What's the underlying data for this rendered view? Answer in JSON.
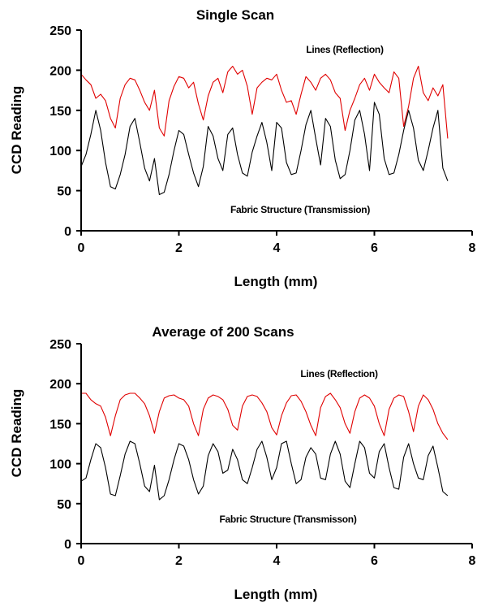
{
  "chart_data": [
    {
      "type": "line",
      "title": "Single Scan",
      "xlabel": "Length (mm)",
      "ylabel": "CCD Reading",
      "xlim": [
        0,
        8
      ],
      "ylim": [
        0,
        250
      ],
      "xticks": [
        0,
        2,
        4,
        6,
        8
      ],
      "yticks": [
        0,
        50,
        100,
        150,
        200,
        250
      ],
      "grid": false,
      "annotations": [
        "Lines (Reflection)",
        "Fabric Structure (Transmission)"
      ],
      "series": [
        {
          "name": "Lines (Reflection)",
          "color": "#e00000",
          "x": [
            0.0,
            0.1,
            0.2,
            0.3,
            0.4,
            0.5,
            0.6,
            0.7,
            0.8,
            0.9,
            1.0,
            1.1,
            1.2,
            1.3,
            1.4,
            1.5,
            1.6,
            1.7,
            1.8,
            1.9,
            2.0,
            2.1,
            2.2,
            2.3,
            2.4,
            2.5,
            2.6,
            2.7,
            2.8,
            2.9,
            3.0,
            3.1,
            3.2,
            3.3,
            3.4,
            3.5,
            3.6,
            3.7,
            3.8,
            3.9,
            4.0,
            4.1,
            4.2,
            4.3,
            4.4,
            4.5,
            4.6,
            4.7,
            4.8,
            4.9,
            5.0,
            5.1,
            5.2,
            5.3,
            5.4,
            5.5,
            5.6,
            5.7,
            5.8,
            5.9,
            6.0,
            6.1,
            6.2,
            6.3,
            6.4,
            6.5,
            6.6,
            6.7,
            6.8,
            6.9,
            7.0,
            7.1,
            7.2,
            7.3,
            7.4,
            7.5
          ],
          "y": [
            195,
            188,
            182,
            165,
            170,
            162,
            140,
            128,
            165,
            182,
            190,
            188,
            175,
            160,
            150,
            175,
            128,
            118,
            162,
            180,
            192,
            190,
            178,
            185,
            158,
            138,
            168,
            185,
            190,
            172,
            198,
            205,
            195,
            200,
            180,
            145,
            178,
            185,
            190,
            188,
            195,
            175,
            160,
            162,
            145,
            170,
            192,
            185,
            175,
            190,
            195,
            188,
            172,
            165,
            125,
            150,
            165,
            182,
            190,
            175,
            195,
            185,
            178,
            172,
            198,
            190,
            130,
            155,
            190,
            205,
            172,
            162,
            178,
            168,
            182,
            115
          ]
        },
        {
          "name": "Fabric Structure (Transmission)",
          "color": "#000000",
          "x": [
            0.0,
            0.1,
            0.2,
            0.3,
            0.4,
            0.5,
            0.6,
            0.7,
            0.8,
            0.9,
            1.0,
            1.1,
            1.2,
            1.3,
            1.4,
            1.5,
            1.6,
            1.7,
            1.8,
            1.9,
            2.0,
            2.1,
            2.2,
            2.3,
            2.4,
            2.5,
            2.6,
            2.7,
            2.8,
            2.9,
            3.0,
            3.1,
            3.2,
            3.3,
            3.4,
            3.5,
            3.6,
            3.7,
            3.8,
            3.9,
            4.0,
            4.1,
            4.2,
            4.3,
            4.4,
            4.5,
            4.6,
            4.7,
            4.8,
            4.9,
            5.0,
            5.1,
            5.2,
            5.3,
            5.4,
            5.5,
            5.6,
            5.7,
            5.8,
            5.9,
            6.0,
            6.1,
            6.2,
            6.3,
            6.4,
            6.5,
            6.6,
            6.7,
            6.8,
            6.9,
            7.0,
            7.1,
            7.2,
            7.3,
            7.4,
            7.5
          ],
          "y": [
            80,
            95,
            120,
            150,
            125,
            85,
            55,
            52,
            70,
            95,
            130,
            140,
            110,
            78,
            62,
            90,
            45,
            48,
            70,
            100,
            125,
            120,
            95,
            72,
            55,
            80,
            130,
            118,
            90,
            75,
            120,
            128,
            95,
            72,
            68,
            98,
            118,
            135,
            110,
            75,
            135,
            128,
            85,
            70,
            72,
            100,
            132,
            150,
            115,
            82,
            140,
            130,
            88,
            65,
            70,
            100,
            138,
            150,
            120,
            75,
            160,
            145,
            90,
            70,
            72,
            95,
            125,
            150,
            128,
            88,
            75,
            100,
            128,
            150,
            78,
            62
          ]
        }
      ]
    },
    {
      "type": "line",
      "title": "Average of 200 Scans",
      "xlabel": "Length (mm)",
      "ylabel": "CCD Reading",
      "xlim": [
        0,
        8
      ],
      "ylim": [
        0,
        250
      ],
      "xticks": [
        0,
        2,
        4,
        6,
        8
      ],
      "yticks": [
        0,
        50,
        100,
        150,
        200,
        250
      ],
      "grid": false,
      "annotations": [
        "Lines (Reflection)",
        "Fabric Structure (Transmisson)"
      ],
      "series": [
        {
          "name": "Lines (Reflection)",
          "color": "#e00000",
          "x": [
            0.0,
            0.1,
            0.2,
            0.3,
            0.4,
            0.5,
            0.6,
            0.7,
            0.8,
            0.9,
            1.0,
            1.1,
            1.2,
            1.3,
            1.4,
            1.5,
            1.6,
            1.7,
            1.8,
            1.9,
            2.0,
            2.1,
            2.2,
            2.3,
            2.4,
            2.5,
            2.6,
            2.7,
            2.8,
            2.9,
            3.0,
            3.1,
            3.2,
            3.3,
            3.4,
            3.5,
            3.6,
            3.7,
            3.8,
            3.9,
            4.0,
            4.1,
            4.2,
            4.3,
            4.4,
            4.5,
            4.6,
            4.7,
            4.8,
            4.9,
            5.0,
            5.1,
            5.2,
            5.3,
            5.4,
            5.5,
            5.6,
            5.7,
            5.8,
            5.9,
            6.0,
            6.1,
            6.2,
            6.3,
            6.4,
            6.5,
            6.6,
            6.7,
            6.8,
            6.9,
            7.0,
            7.1,
            7.2,
            7.3,
            7.4,
            7.5
          ],
          "y": [
            188,
            188,
            180,
            175,
            172,
            158,
            135,
            160,
            180,
            186,
            188,
            188,
            182,
            175,
            160,
            138,
            165,
            182,
            185,
            186,
            182,
            180,
            172,
            150,
            135,
            168,
            182,
            186,
            184,
            180,
            168,
            148,
            142,
            172,
            184,
            186,
            184,
            176,
            165,
            145,
            136,
            160,
            176,
            185,
            186,
            178,
            165,
            148,
            135,
            170,
            184,
            188,
            180,
            170,
            150,
            138,
            165,
            182,
            186,
            182,
            172,
            150,
            135,
            168,
            182,
            186,
            184,
            165,
            140,
            172,
            186,
            180,
            168,
            150,
            138,
            130
          ]
        },
        {
          "name": "Fabric Structure (Transmisson)",
          "color": "#000000",
          "x": [
            0.0,
            0.1,
            0.2,
            0.3,
            0.4,
            0.5,
            0.6,
            0.7,
            0.8,
            0.9,
            1.0,
            1.1,
            1.2,
            1.3,
            1.4,
            1.5,
            1.6,
            1.7,
            1.8,
            1.9,
            2.0,
            2.1,
            2.2,
            2.3,
            2.4,
            2.5,
            2.6,
            2.7,
            2.8,
            2.9,
            3.0,
            3.1,
            3.2,
            3.3,
            3.4,
            3.5,
            3.6,
            3.7,
            3.8,
            3.9,
            4.0,
            4.1,
            4.2,
            4.3,
            4.4,
            4.5,
            4.6,
            4.7,
            4.8,
            4.9,
            5.0,
            5.1,
            5.2,
            5.3,
            5.4,
            5.5,
            5.6,
            5.7,
            5.8,
            5.9,
            6.0,
            6.1,
            6.2,
            6.3,
            6.4,
            6.5,
            6.6,
            6.7,
            6.8,
            6.9,
            7.0,
            7.1,
            7.2,
            7.3,
            7.4,
            7.5
          ],
          "y": [
            78,
            82,
            105,
            125,
            120,
            95,
            62,
            60,
            85,
            112,
            128,
            125,
            100,
            72,
            65,
            98,
            55,
            60,
            80,
            105,
            125,
            122,
            105,
            80,
            62,
            72,
            110,
            125,
            115,
            88,
            92,
            118,
            105,
            80,
            75,
            95,
            118,
            128,
            108,
            80,
            95,
            125,
            128,
            100,
            75,
            80,
            108,
            120,
            112,
            82,
            80,
            112,
            128,
            112,
            78,
            70,
            100,
            128,
            120,
            88,
            82,
            115,
            125,
            95,
            70,
            68,
            108,
            125,
            100,
            82,
            80,
            110,
            122,
            95,
            65,
            60
          ]
        }
      ]
    }
  ]
}
